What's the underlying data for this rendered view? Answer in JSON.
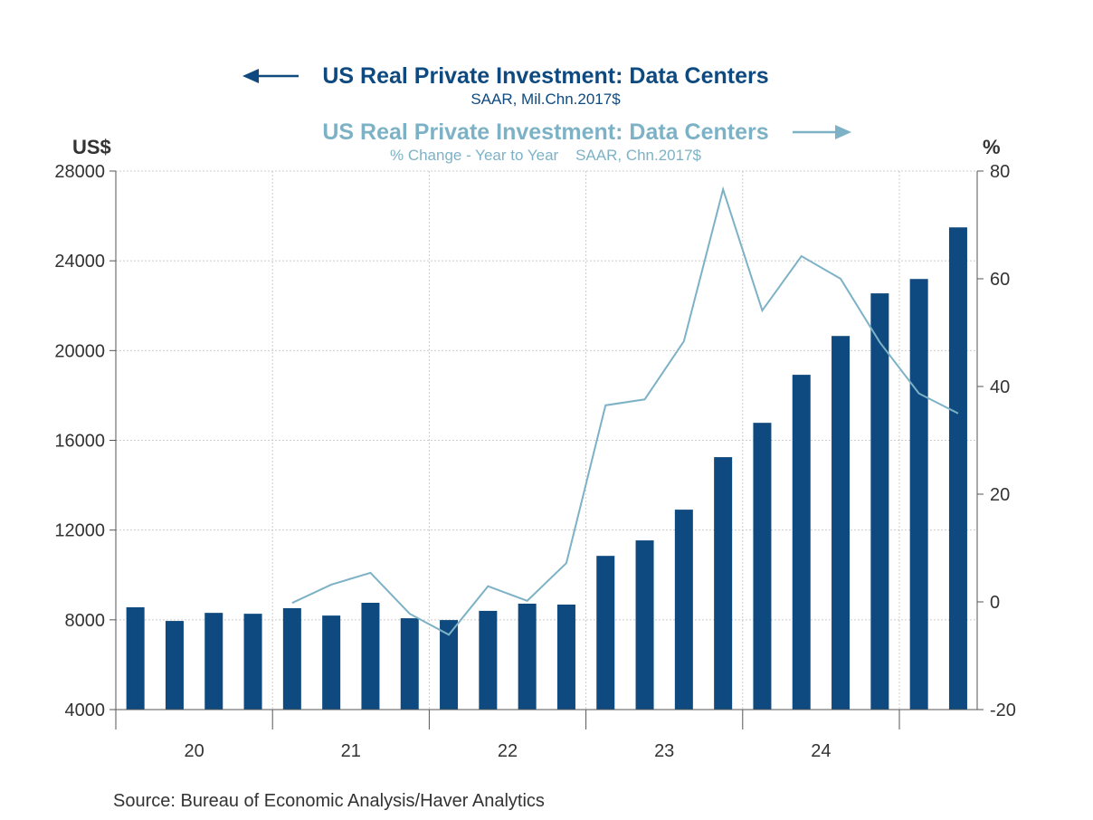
{
  "colors": {
    "bars": "#0e4a7f",
    "line": "#7db2c6",
    "grid": "#cccccc",
    "axis": "#555555"
  },
  "chart_data": {
    "type": "bar+line",
    "source": "Source:  Bureau of Economic Analysis/Haver Analytics",
    "x_tick_labels": [
      "20",
      "21",
      "22",
      "23",
      "24"
    ],
    "quarters": [
      "2020Q1",
      "2020Q2",
      "2020Q3",
      "2020Q4",
      "2021Q1",
      "2021Q2",
      "2021Q3",
      "2021Q4",
      "2022Q1",
      "2022Q2",
      "2022Q3",
      "2022Q4",
      "2023Q1",
      "2023Q2",
      "2023Q3",
      "2023Q4",
      "2024Q1",
      "2024Q2",
      "2024Q3",
      "2024Q4",
      "2025Q1",
      "2025Q2"
    ],
    "left_axis": {
      "label": "US$",
      "range": [
        4000,
        28000
      ],
      "ticks": [
        "4000",
        "8000",
        "12000",
        "16000",
        "20000",
        "24000",
        "28000"
      ]
    },
    "right_axis": {
      "label": "%",
      "range": [
        -20,
        80
      ],
      "ticks": [
        "-20",
        "0",
        "20",
        "40",
        "60",
        "80"
      ]
    },
    "grid": true,
    "series": [
      {
        "name": "US Real Private Investment: Data Centers",
        "subtitle": "SAAR, Mil.Chn.2017$",
        "type": "bar",
        "axis": "left",
        "values": [
          8560,
          7950,
          8310,
          8270,
          8520,
          8190,
          8760,
          8070,
          7990,
          8400,
          8720,
          8680,
          10850,
          11540,
          12910,
          15250,
          16780,
          18920,
          20650,
          22550,
          23190,
          25490
        ]
      },
      {
        "name": "US Real Private Investment: Data Centers",
        "subtitle": "% Change - Year to Year    SAAR, Chn.2017$",
        "type": "line",
        "axis": "right",
        "values": [
          null,
          null,
          null,
          null,
          -0.2,
          3.2,
          5.4,
          -2.2,
          -6.1,
          2.9,
          0.2,
          7.2,
          36.5,
          37.6,
          48.4,
          76.6,
          54.1,
          64.2,
          60.0,
          48.2,
          38.7,
          35.0
        ]
      }
    ]
  }
}
